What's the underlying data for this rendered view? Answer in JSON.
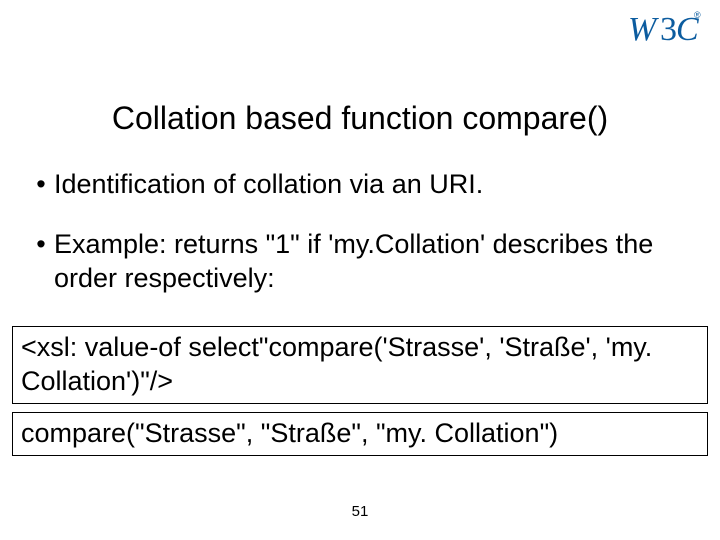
{
  "logo": {
    "text_w": "W",
    "text_3": "3",
    "text_c": "C",
    "color_w": "#0c5c9f",
    "color_3": "#0c5c9f",
    "color_c": "#0c5c9f",
    "trademark": "®",
    "trademark_color": "#0c5c9f"
  },
  "title": "Collation based function compare()",
  "bullets": [
    "Identification of collation via an URI.",
    "Example: returns \"1\" if 'my.Collation' describes the order respectively:"
  ],
  "codeboxes": [
    "<xsl: value-of select\"compare('Strasse', 'Straße', 'my. Collation')\"/>",
    "compare(\"Strasse\", \"Straße\", \"my. Collation\")"
  ],
  "page_number": "51",
  "styles": {
    "background_color": "#ffffff",
    "title_fontsize": 32,
    "bullet_fontsize": 27,
    "code_fontsize": 27,
    "pagenum_fontsize": 15,
    "text_color": "#000000",
    "code_border_color": "#000000"
  }
}
